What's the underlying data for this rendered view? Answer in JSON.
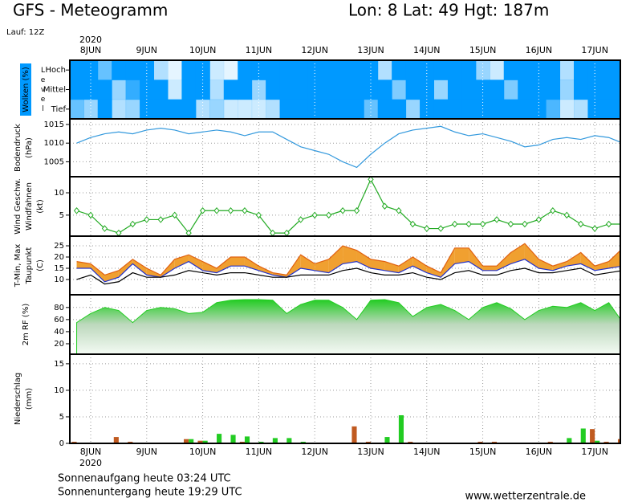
{
  "header": {
    "title": "GFS - Meteogramm",
    "location": "Lon: 8 Lat: 49 Hgt: 187m",
    "run": "Lauf: 12Z"
  },
  "time_axis": {
    "year": "2020",
    "xlim": [
      -0.3725,
      9.456
    ],
    "xticks": [
      {
        "value": 0,
        "label": "8JUN"
      },
      {
        "value": 1,
        "label": "9JUN"
      },
      {
        "value": 2,
        "label": "10JUN"
      },
      {
        "value": 3,
        "label": "11JUN"
      },
      {
        "value": 4,
        "label": "12JUN"
      },
      {
        "value": 5,
        "label": "13JUN"
      },
      {
        "value": 6,
        "label": "14JUN"
      },
      {
        "value": 7,
        "label": "15JUN"
      },
      {
        "value": 8,
        "label": "16JUN"
      },
      {
        "value": 9,
        "label": "17JUN"
      }
    ],
    "x": [
      -0.25,
      0,
      0.25,
      0.5,
      0.75,
      1,
      1.25,
      1.5,
      1.75,
      2,
      2.25,
      2.5,
      2.75,
      3,
      3.25,
      3.5,
      3.75,
      4,
      4.25,
      4.5,
      4.75,
      5,
      5.25,
      5.5,
      5.75,
      6,
      6.25,
      6.5,
      6.75,
      7,
      7.25,
      7.5,
      7.75,
      8,
      8.25,
      8.5,
      8.75,
      9,
      9.25,
      9.5
    ]
  },
  "chart_data": [
    {
      "type": "heatmap",
      "ylabel": [
        "Wolken (%)"
      ],
      "level_label": "Level",
      "color": "#0099ff",
      "series": [
        {
          "name": "Hoch",
          "values": [
            100,
            100,
            60,
            100,
            100,
            100,
            30,
            10,
            100,
            100,
            20,
            10,
            100,
            100,
            100,
            100,
            100,
            100,
            100,
            100,
            100,
            100,
            30,
            100,
            100,
            100,
            100,
            100,
            100,
            40,
            20,
            100,
            100,
            100,
            100,
            30,
            100,
            100,
            100,
            100
          ]
        },
        {
          "name": "Mittel",
          "values": [
            100,
            100,
            100,
            40,
            80,
            100,
            100,
            20,
            100,
            100,
            30,
            100,
            100,
            40,
            100,
            100,
            100,
            100,
            100,
            100,
            100,
            100,
            100,
            50,
            100,
            100,
            40,
            100,
            100,
            100,
            100,
            50,
            100,
            100,
            100,
            40,
            100,
            100,
            100,
            100
          ]
        },
        {
          "name": "Tief",
          "values": [
            60,
            40,
            100,
            30,
            40,
            100,
            100,
            100,
            100,
            30,
            40,
            20,
            20,
            20,
            30,
            100,
            100,
            100,
            100,
            100,
            100,
            60,
            100,
            100,
            40,
            100,
            100,
            100,
            100,
            100,
            100,
            100,
            100,
            100,
            70,
            20,
            30,
            100,
            100,
            100
          ]
        }
      ]
    },
    {
      "type": "line",
      "ylabel": [
        "Bodendruck",
        "(hPa)"
      ],
      "ylim": [
        1001,
        1016.5
      ],
      "yticks": [
        1005,
        1010,
        1015
      ],
      "grid": true,
      "series": [
        {
          "color": "#3399dd",
          "values": [
            1010,
            1011.5,
            1012.5,
            1013,
            1012.5,
            1013.5,
            1014,
            1013.5,
            1012.5,
            1013,
            1013.5,
            1013,
            1012,
            1013,
            1013,
            1011,
            1009,
            1008,
            1007,
            1005,
            1003.5,
            1007,
            1010,
            1012.5,
            1013.5,
            1014,
            1014.5,
            1013,
            1012,
            1012.5,
            1011.5,
            1010.5,
            1009,
            1009.5,
            1011,
            1011.5,
            1011,
            1012,
            1011.5,
            1010
          ]
        }
      ]
    },
    {
      "type": "line",
      "ylabel": [
        "Wind Geschw.",
        "Windfahnen",
        "(kt)"
      ],
      "ylabel_colors": [
        "#22aa22",
        "#000000",
        "#000000"
      ],
      "markers": true,
      "ylim": [
        0.3,
        13.6
      ],
      "yticks": [
        5,
        10
      ],
      "grid": true,
      "series": [
        {
          "color": "#22aa22",
          "values": [
            6,
            5,
            2,
            1,
            3,
            4,
            4,
            5,
            1,
            6,
            6,
            6,
            6,
            5,
            1,
            1,
            4,
            5,
            5,
            6,
            6,
            13,
            7,
            6,
            3,
            2,
            2,
            3,
            3,
            3,
            4,
            3,
            3,
            4,
            6,
            5,
            3,
            2,
            3,
            3
          ]
        }
      ]
    },
    {
      "type": "line",
      "ylabel": [
        "T-Min, Max",
        "Taupunkt",
        "(C)"
      ],
      "fill_between": [
        0,
        1
      ],
      "fill_color": "#f0a030",
      "ylim": [
        3.2,
        29.3
      ],
      "yticks": [
        10,
        15,
        20,
        25
      ],
      "grid": true,
      "series": [
        {
          "color": "#e06010",
          "values": [
            18,
            17,
            12,
            14,
            19,
            15,
            12,
            19,
            21,
            18,
            15,
            20,
            20,
            16,
            13,
            12,
            21,
            17,
            19,
            25,
            23,
            19,
            18,
            16,
            20,
            16,
            13,
            24,
            24,
            16,
            16,
            22,
            26,
            19,
            16,
            18,
            22,
            16,
            18,
            24
          ]
        },
        {
          "color": "#2233cc",
          "values": [
            15,
            15,
            9,
            11,
            17,
            12,
            11,
            15,
            18,
            14,
            13,
            16,
            16,
            14,
            12,
            11,
            15,
            14,
            13,
            17,
            18,
            15,
            14,
            13,
            16,
            13,
            11,
            17,
            18,
            14,
            14,
            17,
            19,
            15,
            14,
            16,
            17,
            14,
            15,
            16
          ]
        },
        {
          "color": "#000000",
          "values": [
            10,
            12,
            8,
            9,
            13,
            11,
            11,
            12,
            14,
            13,
            12,
            13,
            13,
            12,
            11,
            11,
            12,
            12,
            12,
            14,
            15,
            13,
            12,
            12,
            13,
            11,
            10,
            13,
            14,
            12,
            12,
            14,
            15,
            13,
            13,
            14,
            15,
            12,
            13,
            14
          ]
        }
      ]
    },
    {
      "type": "area",
      "ylabel": [
        "2m RF (%)"
      ],
      "ylabel_colors": [
        "#22aa22"
      ],
      "ylim": [
        2.7,
        101
      ],
      "yticks": [
        20,
        40,
        60,
        80
      ],
      "grid": true,
      "series": [
        {
          "color": "#22cc22",
          "values": [
            55,
            70,
            80,
            75,
            55,
            75,
            80,
            78,
            70,
            72,
            88,
            92,
            93,
            93,
            92,
            70,
            85,
            92,
            92,
            80,
            60,
            92,
            93,
            88,
            65,
            80,
            85,
            75,
            60,
            80,
            88,
            78,
            60,
            75,
            82,
            80,
            88,
            75,
            88,
            55
          ]
        }
      ]
    },
    {
      "type": "bar",
      "ylabel": [
        "Niederschlag",
        "(mm)"
      ],
      "ylim": [
        0,
        16.8
      ],
      "yticks": [
        0,
        5,
        10,
        15
      ],
      "grid": true,
      "series": [
        {
          "color": "#c05a20",
          "values": [
            0.3,
            0,
            0,
            1.2,
            0.3,
            0,
            0,
            0,
            0.8,
            0.5,
            0,
            0,
            0.3,
            0,
            0,
            0,
            0,
            0,
            0,
            0,
            3.2,
            0.3,
            0,
            0,
            0.3,
            0,
            0,
            0,
            0,
            0.3,
            0.3,
            0,
            0,
            0,
            0.3,
            0,
            0,
            2.7,
            0.3,
            0.8
          ]
        },
        {
          "color": "#22cc22",
          "values": [
            0,
            0,
            0,
            0,
            0,
            0,
            0,
            0,
            0.8,
            0.5,
            1.8,
            1.6,
            1.3,
            0.3,
            1,
            1,
            0.3,
            0,
            0,
            0,
            0,
            0,
            1.2,
            5.3,
            0,
            0,
            0,
            0,
            0,
            0,
            0,
            0,
            0,
            0,
            0,
            1,
            2.8,
            0.5,
            0,
            0
          ]
        }
      ]
    }
  ],
  "footer": {
    "sunrise": "Sonnenaufgang heute 03:24 UTC",
    "sunset": "Sonnenuntergang heute 19:29 UTC",
    "source": "www.wetterzentrale.de"
  }
}
